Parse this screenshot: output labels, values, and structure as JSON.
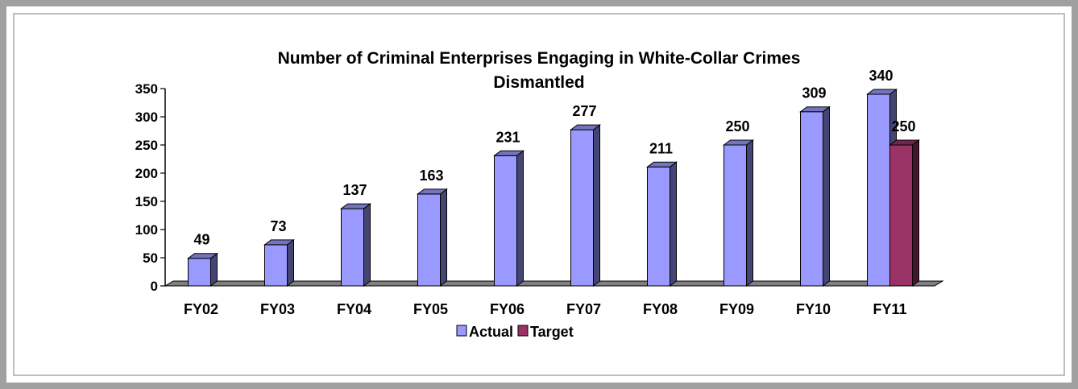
{
  "chart_data": {
    "type": "bar",
    "title": "Number of Criminal Enterprises Engaging in White-Collar Crimes",
    "subtitle": "Dismantled",
    "xlabel": "",
    "ylabel": "",
    "ylim": [
      0,
      350
    ],
    "yticks": [
      0,
      50,
      100,
      150,
      200,
      250,
      300,
      350
    ],
    "grid": false,
    "legend_position": "bottom",
    "categories": [
      "FY02",
      "FY03",
      "FY04",
      "FY05",
      "FY06",
      "FY07",
      "FY08",
      "FY09",
      "FY10",
      "FY11"
    ],
    "series": [
      {
        "name": "Actual",
        "color": "#9999ff",
        "values": [
          49,
          73,
          137,
          163,
          231,
          277,
          211,
          250,
          309,
          340
        ]
      },
      {
        "name": "Target",
        "color": "#993366",
        "values": [
          null,
          null,
          null,
          null,
          null,
          null,
          null,
          null,
          null,
          250
        ]
      }
    ]
  }
}
